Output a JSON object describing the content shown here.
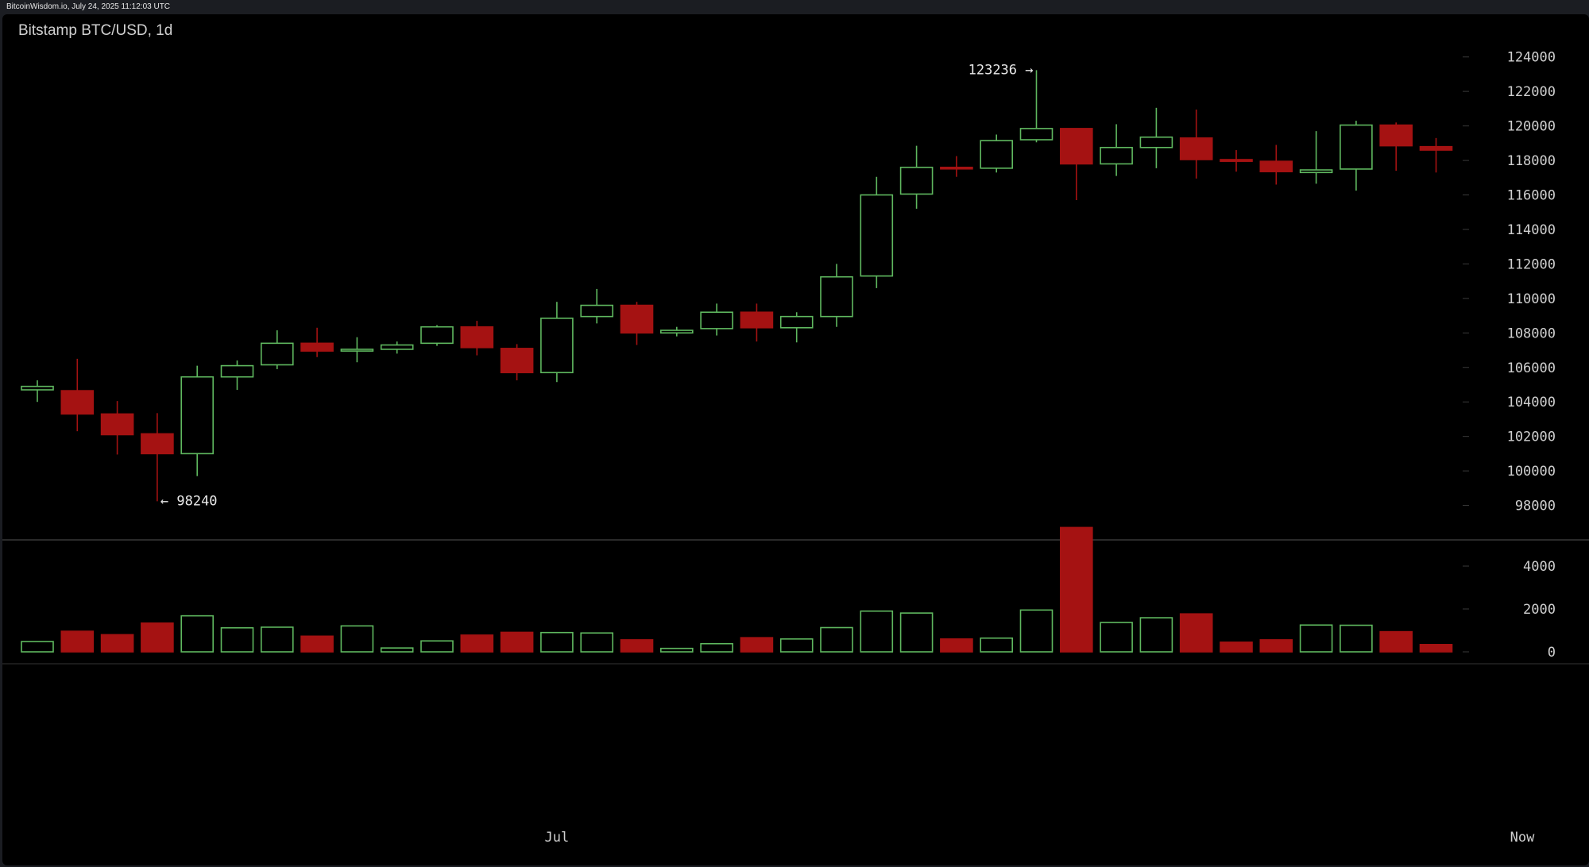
{
  "header": {
    "credit": "BitcoinWisdom.io, July 24, 2025 11:12:03 UTC"
  },
  "colors": {
    "up": "#5fb85f",
    "down": "#a51212",
    "grid": "#3a3a3a",
    "background": "#000000"
  },
  "chart_data": {
    "type": "candlestick",
    "title": "Bitstamp BTC/USD, 1d",
    "ylim": [
      96000,
      125000
    ],
    "y_ticks": [
      98000,
      100000,
      102000,
      104000,
      106000,
      108000,
      110000,
      112000,
      114000,
      116000,
      118000,
      120000,
      122000,
      124000
    ],
    "volume_ylim": [
      0,
      6000
    ],
    "volume_ticks": [
      0,
      2000,
      4000
    ],
    "x_labels": [
      {
        "index": 13,
        "label": "Jul"
      },
      {
        "index": 37,
        "label": "Now"
      }
    ],
    "annotations": [
      {
        "index": 25,
        "value": 123236,
        "text": "123236 →",
        "side": "left"
      },
      {
        "index": 3,
        "value": 98240,
        "text": "← 98240",
        "side": "right"
      }
    ],
    "candles": [
      {
        "o": 104700,
        "h": 105250,
        "l": 104000,
        "c": 104900,
        "v": 480
      },
      {
        "o": 104650,
        "h": 106500,
        "l": 102300,
        "c": 103300,
        "v": 960
      },
      {
        "o": 103300,
        "h": 104050,
        "l": 100950,
        "c": 102100,
        "v": 800
      },
      {
        "o": 102150,
        "h": 103350,
        "l": 98240,
        "c": 101000,
        "v": 1340
      },
      {
        "o": 101000,
        "h": 106100,
        "l": 99700,
        "c": 105450,
        "v": 1680
      },
      {
        "o": 105450,
        "h": 106400,
        "l": 104700,
        "c": 106100,
        "v": 1120
      },
      {
        "o": 106150,
        "h": 108150,
        "l": 105900,
        "c": 107400,
        "v": 1150
      },
      {
        "o": 107400,
        "h": 108300,
        "l": 106600,
        "c": 106950,
        "v": 730
      },
      {
        "o": 106950,
        "h": 107750,
        "l": 106300,
        "c": 107050,
        "v": 1210
      },
      {
        "o": 107050,
        "h": 107500,
        "l": 106800,
        "c": 107300,
        "v": 180
      },
      {
        "o": 107400,
        "h": 108450,
        "l": 107250,
        "c": 108350,
        "v": 510
      },
      {
        "o": 108350,
        "h": 108700,
        "l": 106700,
        "c": 107150,
        "v": 780
      },
      {
        "o": 107100,
        "h": 107350,
        "l": 105250,
        "c": 105700,
        "v": 910
      },
      {
        "o": 105700,
        "h": 109800,
        "l": 105150,
        "c": 108850,
        "v": 900
      },
      {
        "o": 108950,
        "h": 110550,
        "l": 108550,
        "c": 109600,
        "v": 880
      },
      {
        "o": 109600,
        "h": 109800,
        "l": 107300,
        "c": 108000,
        "v": 560
      },
      {
        "o": 108000,
        "h": 108350,
        "l": 107800,
        "c": 108150,
        "v": 160
      },
      {
        "o": 108250,
        "h": 109700,
        "l": 107850,
        "c": 109200,
        "v": 380
      },
      {
        "o": 109200,
        "h": 109700,
        "l": 107500,
        "c": 108300,
        "v": 660
      },
      {
        "o": 108300,
        "h": 109200,
        "l": 107450,
        "c": 108950,
        "v": 600
      },
      {
        "o": 108950,
        "h": 112000,
        "l": 108350,
        "c": 111250,
        "v": 1130
      },
      {
        "o": 111300,
        "h": 117050,
        "l": 110600,
        "c": 116000,
        "v": 1900
      },
      {
        "o": 116050,
        "h": 118850,
        "l": 115200,
        "c": 117600,
        "v": 1810
      },
      {
        "o": 117600,
        "h": 118250,
        "l": 117050,
        "c": 117550,
        "v": 600
      },
      {
        "o": 117550,
        "h": 119500,
        "l": 117300,
        "c": 119150,
        "v": 640
      },
      {
        "o": 119200,
        "h": 123236,
        "l": 119050,
        "c": 119850,
        "v": 1950
      },
      {
        "o": 119850,
        "h": 119850,
        "l": 115700,
        "c": 117800,
        "v": 5800
      },
      {
        "o": 117800,
        "h": 120100,
        "l": 117100,
        "c": 118750,
        "v": 1370
      },
      {
        "o": 118750,
        "h": 121050,
        "l": 117550,
        "c": 119350,
        "v": 1590
      },
      {
        "o": 119300,
        "h": 120950,
        "l": 116950,
        "c": 118050,
        "v": 1770
      },
      {
        "o": 118050,
        "h": 118600,
        "l": 117350,
        "c": 117950,
        "v": 450
      },
      {
        "o": 117950,
        "h": 118900,
        "l": 116600,
        "c": 117350,
        "v": 560
      },
      {
        "o": 117300,
        "h": 119700,
        "l": 116650,
        "c": 117450,
        "v": 1250
      },
      {
        "o": 117500,
        "h": 120300,
        "l": 116250,
        "c": 120050,
        "v": 1240
      },
      {
        "o": 120050,
        "h": 120200,
        "l": 117400,
        "c": 118850,
        "v": 940
      },
      {
        "o": 118800,
        "h": 119300,
        "l": 117300,
        "c": 118600,
        "v": 340
      }
    ]
  }
}
